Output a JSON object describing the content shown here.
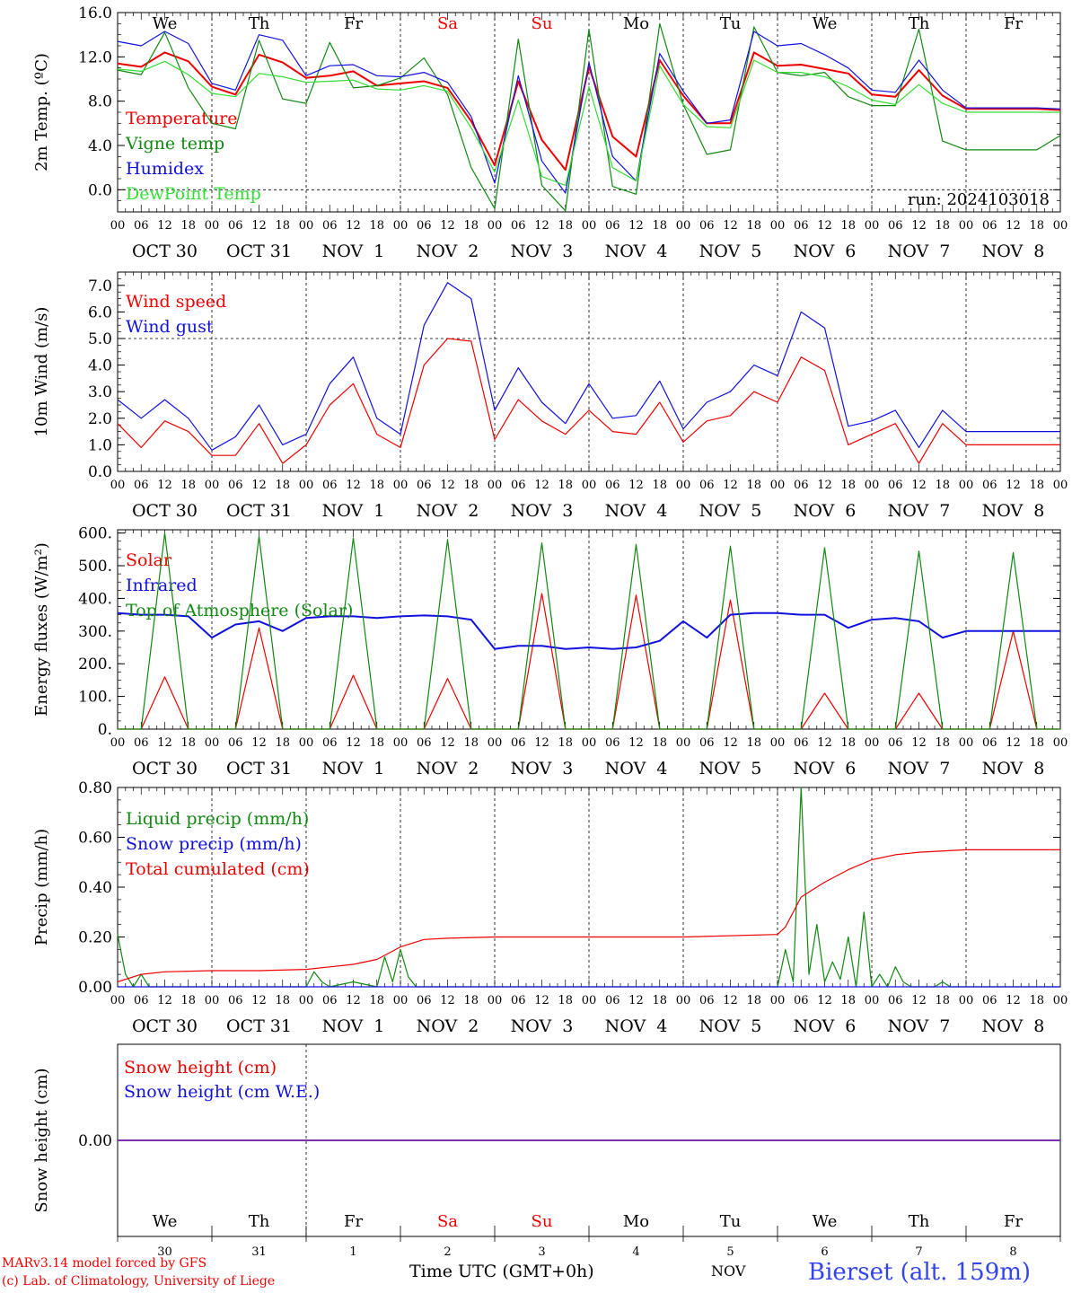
{
  "footer": {
    "model": "MARv3.14 model forced by GFS",
    "copyright": "(c) Lab. of Climatology, University of Liege",
    "axis_title": "Time UTC (GMT+0h)",
    "month": "NOV",
    "station": "Bierset (alt. 159m)"
  },
  "colors": {
    "red": "#ee0000",
    "green": "#118811",
    "blue": "#1111dd",
    "light_green": "#33dd33",
    "purple": "#7733aa",
    "black": "#000000"
  },
  "days": {
    "weekday": [
      "We",
      "Th",
      "Fr",
      "Sa",
      "Su",
      "Mo",
      "Tu",
      "We",
      "Th",
      "Fr"
    ],
    "weekend_flags": [
      false,
      false,
      false,
      true,
      true,
      false,
      false,
      false,
      false,
      false
    ],
    "date_labels": [
      "OCT 30",
      "OCT 31",
      "NOV  1",
      "NOV  2",
      "NOV  3",
      "NOV  4",
      "NOV  5",
      "NOV  6",
      "NOV  7",
      "NOV  8"
    ],
    "day_numbers": [
      "30",
      "31",
      "1",
      "2",
      "3",
      "4",
      "5",
      "6",
      "7",
      "8"
    ],
    "hour_ticks": [
      "00",
      "06",
      "12",
      "18"
    ],
    "final_tick": "00"
  },
  "chart_data": [
    {
      "type": "line",
      "ylabel": "2m Temp. (ºC)",
      "ylim": [
        -2,
        16
      ],
      "yticks": [
        "0.0",
        "4.0",
        "8.0",
        "12.0",
        "16.0"
      ],
      "yticks_values": [
        0,
        4,
        8,
        12,
        16
      ],
      "run_label": "run: 2024103018",
      "x_unit": "hours since 2024-10-30 00 UTC",
      "series": [
        {
          "name": "Temperature",
          "color": "#ee0000",
          "x": [
            0,
            6,
            12,
            18,
            24,
            30,
            36,
            42,
            48,
            54,
            60,
            66,
            72,
            78,
            84,
            90,
            96,
            102,
            108,
            114,
            120,
            126,
            132,
            138,
            144,
            150,
            156,
            162,
            168,
            174,
            180,
            186,
            192,
            198,
            204,
            210,
            216,
            222,
            228,
            234,
            240
          ],
          "y": [
            11.4,
            11.1,
            12.4,
            11.6,
            9.3,
            8.6,
            12.2,
            11.5,
            10.1,
            10.3,
            10.7,
            9.4,
            9.6,
            9.8,
            9.2,
            6.2,
            2.2,
            9.8,
            4.5,
            1.8,
            11.1,
            4.8,
            3.0,
            11.7,
            8.5,
            6.0,
            6.0,
            12.4,
            11.2,
            11.3,
            10.9,
            10.5,
            8.6,
            8.4,
            10.8,
            8.5,
            7.3,
            7.3,
            7.3,
            7.3,
            7.2
          ]
        },
        {
          "name": "Vigne temp",
          "color": "#118811",
          "x": [
            0,
            6,
            12,
            18,
            24,
            30,
            36,
            42,
            48,
            54,
            60,
            66,
            72,
            78,
            84,
            90,
            96,
            102,
            108,
            114,
            120,
            126,
            132,
            138,
            144,
            150,
            156,
            162,
            168,
            174,
            180,
            186,
            192,
            198,
            204,
            210,
            216,
            222,
            228,
            234,
            240
          ],
          "y": [
            10.8,
            10.4,
            14.2,
            9.2,
            6.0,
            5.5,
            13.5,
            8.2,
            7.8,
            13.3,
            9.2,
            9.4,
            10.1,
            11.9,
            8.6,
            2.0,
            -1.7,
            13.6,
            0.4,
            -1.9,
            14.5,
            0.3,
            -0.4,
            15.0,
            7.7,
            3.2,
            3.6,
            14.7,
            10.6,
            10.3,
            10.6,
            8.4,
            7.6,
            7.6,
            14.5,
            4.4,
            3.6,
            3.6,
            3.6,
            3.6,
            4.9
          ]
        },
        {
          "name": "Humidex",
          "color": "#1111dd",
          "x": [
            0,
            6,
            12,
            18,
            24,
            30,
            36,
            42,
            48,
            54,
            60,
            66,
            72,
            78,
            84,
            90,
            96,
            102,
            108,
            114,
            120,
            126,
            132,
            138,
            144,
            150,
            156,
            162,
            168,
            174,
            180,
            186,
            192,
            198,
            204,
            210,
            216,
            222,
            228,
            234,
            240
          ],
          "y": [
            13.4,
            13.0,
            14.3,
            13.2,
            9.6,
            9.0,
            14.0,
            13.5,
            10.3,
            11.2,
            11.3,
            10.3,
            10.2,
            10.6,
            9.7,
            6.6,
            0.6,
            10.3,
            2.6,
            -0.3,
            11.5,
            3.0,
            0.8,
            12.3,
            8.9,
            6.0,
            6.3,
            14.3,
            13.0,
            13.2,
            12.2,
            11.0,
            9.0,
            8.8,
            11.7,
            9.0,
            7.4,
            7.4,
            7.4,
            7.4,
            7.3
          ]
        },
        {
          "name": "DewPoint Temp",
          "color": "#33dd33",
          "x": [
            0,
            6,
            12,
            18,
            24,
            30,
            36,
            42,
            48,
            54,
            60,
            66,
            72,
            78,
            84,
            90,
            96,
            102,
            108,
            114,
            120,
            126,
            132,
            138,
            144,
            150,
            156,
            162,
            168,
            174,
            180,
            186,
            192,
            198,
            204,
            210,
            216,
            222,
            228,
            234,
            240
          ],
          "y": [
            10.9,
            10.7,
            11.6,
            10.4,
            8.7,
            8.4,
            10.5,
            10.2,
            9.7,
            9.8,
            9.9,
            9.1,
            9.0,
            9.4,
            8.9,
            5.6,
            1.6,
            8.1,
            1.2,
            0.4,
            9.3,
            2.0,
            0.8,
            11.2,
            7.7,
            5.7,
            5.6,
            11.7,
            10.6,
            10.6,
            10.2,
            9.3,
            8.1,
            7.7,
            9.5,
            7.8,
            7.0,
            7.0,
            7.0,
            7.0,
            7.0
          ]
        }
      ]
    },
    {
      "type": "line",
      "ylabel": "10m Wind (m/s)",
      "ylim": [
        0,
        7.5
      ],
      "yticks": [
        "0.0",
        "1.0",
        "2.0",
        "3.0",
        "4.0",
        "5.0",
        "6.0",
        "7.0"
      ],
      "yticks_values": [
        0,
        1,
        2,
        3,
        4,
        5,
        6,
        7
      ],
      "reference_line": 5.0,
      "series": [
        {
          "name": "Wind speed",
          "color": "#ee0000",
          "x": [
            0,
            6,
            12,
            18,
            24,
            30,
            36,
            42,
            48,
            54,
            60,
            66,
            72,
            78,
            84,
            90,
            96,
            102,
            108,
            114,
            120,
            126,
            132,
            138,
            144,
            150,
            156,
            162,
            168,
            174,
            180,
            186,
            192,
            198,
            204,
            210,
            216,
            222,
            228,
            234,
            240
          ],
          "y": [
            1.8,
            0.9,
            1.9,
            1.5,
            0.6,
            0.6,
            1.8,
            0.3,
            1.0,
            2.5,
            3.3,
            1.4,
            0.9,
            4.0,
            5.0,
            4.9,
            1.2,
            2.7,
            1.9,
            1.4,
            2.3,
            1.5,
            1.4,
            2.6,
            1.1,
            1.9,
            2.1,
            3.0,
            2.6,
            4.3,
            3.8,
            1.0,
            1.4,
            1.8,
            0.3,
            1.8,
            1.0,
            1.0,
            1.0,
            1.0,
            1.0
          ]
        },
        {
          "name": "Wind gust",
          "color": "#1111dd",
          "x": [
            0,
            6,
            12,
            18,
            24,
            30,
            36,
            42,
            48,
            54,
            60,
            66,
            72,
            78,
            84,
            90,
            96,
            102,
            108,
            114,
            120,
            126,
            132,
            138,
            144,
            150,
            156,
            162,
            168,
            174,
            180,
            186,
            192,
            198,
            204,
            210,
            216,
            222,
            228,
            234,
            240
          ],
          "y": [
            2.7,
            2.0,
            2.7,
            2.0,
            0.8,
            1.3,
            2.5,
            1.0,
            1.4,
            3.3,
            4.3,
            2.0,
            1.4,
            5.5,
            7.1,
            6.5,
            2.3,
            3.9,
            2.6,
            1.8,
            3.3,
            2.0,
            2.1,
            3.4,
            1.6,
            2.6,
            3.0,
            4.0,
            3.6,
            6.0,
            5.4,
            1.7,
            1.9,
            2.3,
            0.9,
            2.3,
            1.5,
            1.5,
            1.5,
            1.5,
            1.5
          ]
        }
      ]
    },
    {
      "type": "line",
      "ylabel": "Energy fluxes (W/m²)",
      "ylim": [
        0,
        610
      ],
      "yticks": [
        "0.",
        "100.",
        "200.",
        "300.",
        "400.",
        "500.",
        "600."
      ],
      "yticks_values": [
        0,
        100,
        200,
        300,
        400,
        500,
        600
      ],
      "series": [
        {
          "name": "Solar",
          "color": "#ee0000",
          "peaks": [
            160,
            310,
            165,
            155,
            415,
            410,
            395,
            110,
            110,
            300
          ],
          "peak_hour": 12
        },
        {
          "name": "Infrared",
          "color": "#1111dd",
          "x": [
            0,
            6,
            12,
            18,
            24,
            30,
            36,
            42,
            48,
            54,
            60,
            66,
            72,
            78,
            84,
            90,
            96,
            102,
            108,
            114,
            120,
            126,
            132,
            138,
            144,
            150,
            156,
            162,
            168,
            174,
            180,
            186,
            192,
            198,
            204,
            210,
            216,
            222,
            228,
            234,
            240
          ],
          "y": [
            355,
            350,
            350,
            345,
            280,
            320,
            330,
            300,
            340,
            345,
            345,
            340,
            345,
            348,
            345,
            335,
            245,
            255,
            255,
            245,
            250,
            245,
            250,
            270,
            330,
            280,
            350,
            355,
            355,
            350,
            350,
            310,
            335,
            340,
            330,
            280,
            300,
            300,
            300,
            300,
            300
          ]
        },
        {
          "name": "Top of Atmosphere (Solar)",
          "color": "#118811",
          "peaks": [
            600,
            590,
            585,
            580,
            570,
            565,
            560,
            555,
            545,
            540
          ],
          "peak_hour": 12
        }
      ]
    },
    {
      "type": "line",
      "ylabel": "Precip (mm/h)",
      "ylim": [
        0,
        0.8
      ],
      "yticks": [
        "0.00",
        "0.20",
        "0.40",
        "0.60",
        "0.80"
      ],
      "yticks_values": [
        0,
        0.2,
        0.4,
        0.6,
        0.8
      ],
      "series": [
        {
          "name": "Liquid precip (mm/h)",
          "color": "#118811",
          "x": [
            0,
            2,
            4,
            6,
            8,
            10,
            12,
            30,
            48,
            50,
            52,
            54,
            60,
            66,
            68,
            70,
            72,
            74,
            76,
            80,
            96,
            120,
            168,
            170,
            172,
            174,
            176,
            178,
            180,
            182,
            184,
            186,
            188,
            190,
            192,
            194,
            196,
            198,
            200,
            202,
            204,
            208,
            210,
            212,
            240
          ],
          "y": [
            0.21,
            0.05,
            0.0,
            0.05,
            0.0,
            0.0,
            0.0,
            0.0,
            0.0,
            0.06,
            0.02,
            0.0,
            0.02,
            0.0,
            0.12,
            0.02,
            0.15,
            0.04,
            0.0,
            0.0,
            0.0,
            0.0,
            0.0,
            0.15,
            0.02,
            0.8,
            0.05,
            0.25,
            0.02,
            0.1,
            0.03,
            0.2,
            0.0,
            0.3,
            0.0,
            0.05,
            0.0,
            0.08,
            0.02,
            0.0,
            0.0,
            0.0,
            0.02,
            0.0,
            0.0
          ]
        },
        {
          "name": "Snow precip (mm/h)",
          "color": "#1111dd",
          "x": [
            0,
            240
          ],
          "y": [
            0,
            0
          ]
        },
        {
          "name": "Total cumulated (cm)",
          "color": "#ee0000",
          "x": [
            0,
            6,
            12,
            24,
            36,
            48,
            54,
            60,
            66,
            72,
            78,
            84,
            96,
            120,
            144,
            168,
            170,
            174,
            176,
            180,
            186,
            192,
            198,
            204,
            216,
            240
          ],
          "y": [
            0.02,
            0.05,
            0.06,
            0.065,
            0.065,
            0.07,
            0.08,
            0.09,
            0.11,
            0.16,
            0.19,
            0.195,
            0.2,
            0.2,
            0.2,
            0.21,
            0.24,
            0.36,
            0.38,
            0.42,
            0.47,
            0.51,
            0.53,
            0.54,
            0.55,
            0.55
          ]
        }
      ]
    },
    {
      "type": "line",
      "ylabel": "Snow height (cm)",
      "ylim": [
        -1,
        1
      ],
      "yticks": [
        "0.00"
      ],
      "yticks_values": [
        0
      ],
      "series": [
        {
          "name": "Snow height (cm)",
          "color": "#ee0000",
          "x": [
            0,
            240
          ],
          "y": [
            0,
            0
          ]
        },
        {
          "name": "Snow height (cm W.E.)",
          "color": "#1111dd",
          "x": [
            0,
            240
          ],
          "y": [
            0,
            0
          ]
        }
      ]
    }
  ]
}
